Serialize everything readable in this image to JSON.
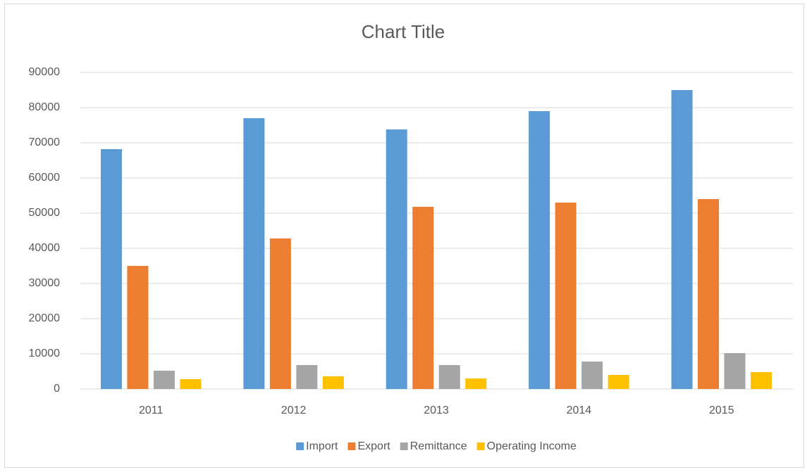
{
  "chart_data": {
    "type": "bar",
    "title": "Chart Title",
    "categories": [
      "2011",
      "2012",
      "2013",
      "2014",
      "2015"
    ],
    "series": [
      {
        "name": "Import",
        "color": "#5b9bd5",
        "values": [
          68200,
          77000,
          73800,
          79000,
          85000
        ]
      },
      {
        "name": "Export",
        "color": "#ed7d31",
        "values": [
          35000,
          42800,
          51800,
          53000,
          54000
        ]
      },
      {
        "name": "Remittance",
        "color": "#a5a5a5",
        "values": [
          5200,
          6800,
          6800,
          7800,
          10200
        ]
      },
      {
        "name": "Operating Income",
        "color": "#ffc000",
        "values": [
          2800,
          3600,
          3000,
          4000,
          4800
        ]
      }
    ],
    "ylim": [
      0,
      90000
    ],
    "yticks": [
      0,
      10000,
      20000,
      30000,
      40000,
      50000,
      60000,
      70000,
      80000,
      90000
    ],
    "grid": true,
    "legend": "bottom"
  }
}
